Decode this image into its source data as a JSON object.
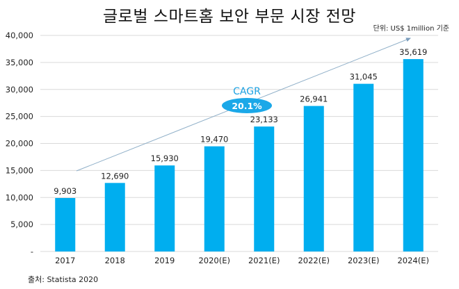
{
  "chart_data": {
    "type": "bar",
    "title": "글로벌 스마트홈 보안 부문 시장 전망",
    "unit_note": "단위: US$ 1million 기준",
    "source": "출처: Statista 2020",
    "categories": [
      "2017",
      "2018",
      "2019",
      "2020(E)",
      "2021(E)",
      "2022(E)",
      "2023(E)",
      "2024(E)"
    ],
    "values": [
      9903,
      12690,
      15930,
      19470,
      23133,
      26941,
      31045,
      35619
    ],
    "value_labels": [
      "9,903",
      "12,690",
      "15,930",
      "19,470",
      "23,133",
      "26,941",
      "31,045",
      "35,619"
    ],
    "xlabel": "",
    "ylabel": "",
    "ylim": [
      0,
      40000
    ],
    "yticks": [
      0,
      5000,
      10000,
      15000,
      20000,
      25000,
      30000,
      35000,
      40000
    ],
    "ytick_labels": [
      "-",
      "5,000",
      "10,000",
      "15,000",
      "20,000",
      "25,000",
      "30,000",
      "35,000",
      "40,000"
    ],
    "grid": true,
    "legend": "none",
    "annotation": {
      "label": "CAGR",
      "value": "20.1%",
      "trend_arrow": true
    },
    "colors": {
      "bar": "#00AEEF",
      "grid": "#D9D9D9",
      "arrow": "#8FAFC8",
      "cagr_label": "#1BA1E2",
      "cagr_badge": "#1BA8E8",
      "cagr_badge_text": "#FFFFFF"
    }
  }
}
